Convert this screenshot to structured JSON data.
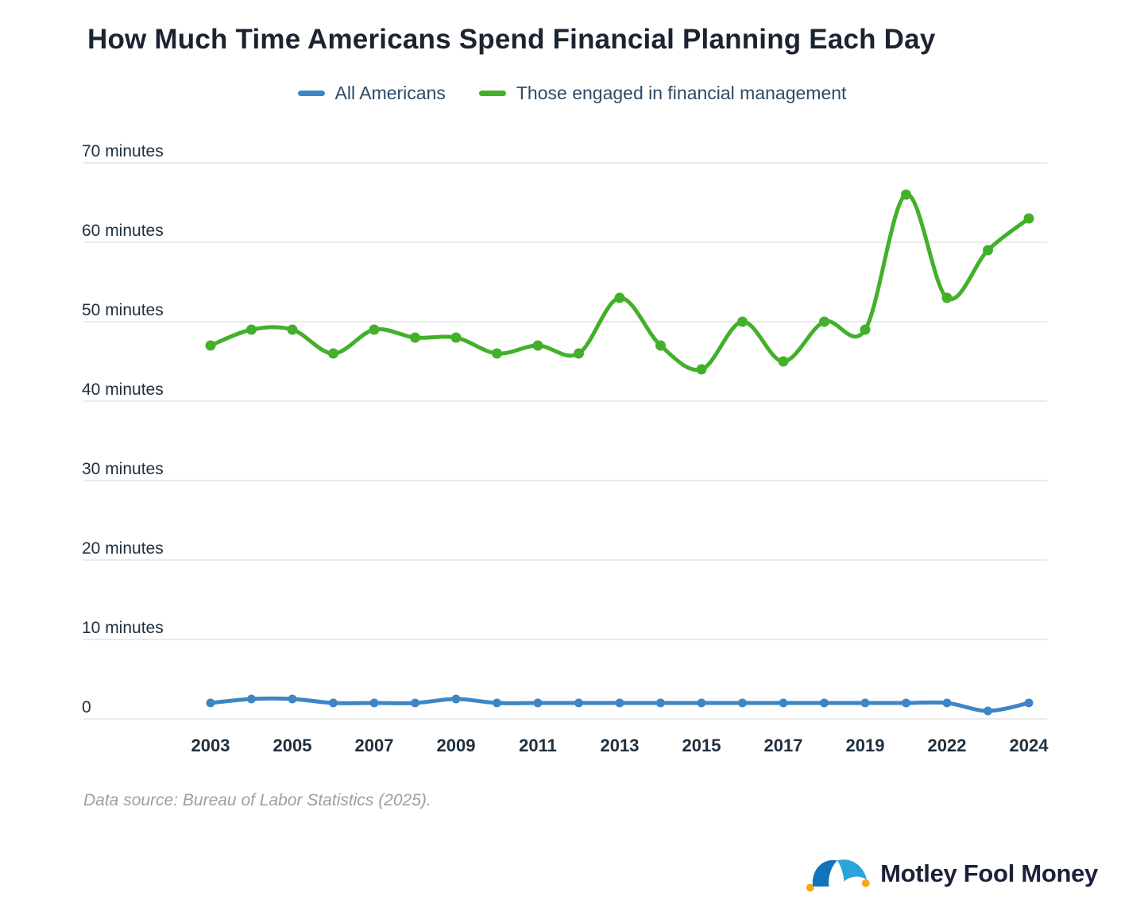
{
  "chart_data": {
    "type": "line",
    "title": "How Much Time Americans Spend Financial Planning Each Day",
    "xlabel": "",
    "ylabel": "",
    "ylim": [
      0,
      70
    ],
    "grid": true,
    "legend_position": "top",
    "x_years": [
      2003,
      2004,
      2005,
      2006,
      2007,
      2008,
      2009,
      2010,
      2011,
      2012,
      2013,
      2014,
      2015,
      2016,
      2017,
      2018,
      2019,
      2021,
      2022,
      2023,
      2024
    ],
    "series": [
      {
        "name": "All Americans",
        "color": "#3d85c6",
        "values": [
          2,
          2.5,
          2.5,
          2,
          2,
          2,
          2.5,
          2,
          2,
          2,
          2,
          2,
          2,
          2,
          2,
          2,
          2,
          2,
          2,
          1,
          2
        ]
      },
      {
        "name": "Those engaged in financial management",
        "color": "#43b02a",
        "values": [
          47,
          49,
          49,
          46,
          49,
          48,
          48,
          46,
          47,
          46,
          53,
          47,
          44,
          50,
          45,
          50,
          49,
          66,
          53,
          59,
          63
        ]
      }
    ],
    "yticks": [
      {
        "value": 0,
        "label": "0"
      },
      {
        "value": 10,
        "label": "10 minutes"
      },
      {
        "value": 20,
        "label": "20 minutes"
      },
      {
        "value": 30,
        "label": "30 minutes"
      },
      {
        "value": 40,
        "label": "40 minutes"
      },
      {
        "value": 50,
        "label": "50 minutes"
      },
      {
        "value": 60,
        "label": "60 minutes"
      },
      {
        "value": 70,
        "label": "70 minutes"
      }
    ],
    "xtick_labels": [
      "2003",
      "2005",
      "2007",
      "2009",
      "2011",
      "2013",
      "2015",
      "2017",
      "2019",
      "2022",
      "2024"
    ]
  },
  "footer": {
    "source": "Data source: Bureau of Labor Statistics (2025).",
    "brand": "Motley Fool Money"
  },
  "colors": {
    "accent_blue": "#3d85c6",
    "accent_green": "#43b02a",
    "gridline": "#e4e4e4",
    "title_text": "#1b2430",
    "axis_text": "#20303e",
    "source_text": "#9b9fa3",
    "logo_navy": "#1b2139",
    "logo_blue_dark": "#1373ba",
    "logo_blue_light": "#2ba4de",
    "logo_yellow": "#f4a61d"
  }
}
